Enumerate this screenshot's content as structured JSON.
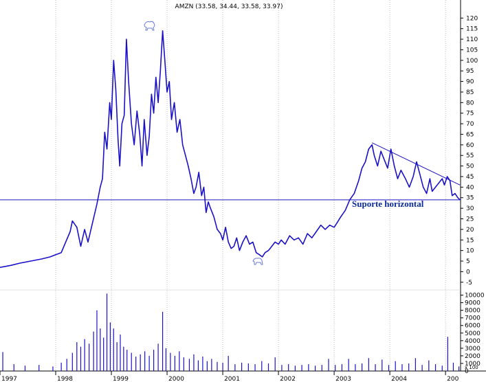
{
  "chart_data": {
    "type": "line",
    "title": "AMZN (33.58, 34.44, 33.58, 33.97)",
    "xlabel": "",
    "ylabel": "",
    "x_ticks": [
      "1997",
      "1998",
      "1999",
      "2000",
      "2001",
      "2002",
      "2003",
      "2004",
      "200"
    ],
    "price_axis": {
      "ylim": [
        -8,
        124
      ],
      "ticks": [
        -5,
        0,
        5,
        10,
        15,
        20,
        25,
        30,
        35,
        40,
        45,
        50,
        55,
        60,
        65,
        70,
        75,
        80,
        85,
        90,
        95,
        100,
        105,
        110,
        115,
        120
      ]
    },
    "volume_axis": {
      "ylim": [
        0,
        10500
      ],
      "ticks": [
        0,
        1000,
        2000,
        3000,
        4000,
        5000,
        6000,
        7000,
        8000,
        9000,
        10000
      ],
      "scale_label": "x 100"
    },
    "series": [
      {
        "values_xy": [
          [
            1997.0,
            2
          ],
          [
            1997.2,
            3
          ],
          [
            1997.35,
            4
          ],
          [
            1997.55,
            5
          ],
          [
            1997.75,
            6
          ],
          [
            1997.9,
            7
          ],
          [
            1998.0,
            8
          ],
          [
            1998.1,
            9
          ],
          [
            1998.18,
            14
          ],
          [
            1998.26,
            19
          ],
          [
            1998.3,
            24
          ],
          [
            1998.38,
            21
          ],
          [
            1998.45,
            12
          ],
          [
            1998.52,
            20
          ],
          [
            1998.58,
            14
          ],
          [
            1998.66,
            23
          ],
          [
            1998.74,
            32
          ],
          [
            1998.8,
            40
          ],
          [
            1998.84,
            44
          ],
          [
            1998.88,
            66
          ],
          [
            1998.92,
            58
          ],
          [
            1998.97,
            80
          ],
          [
            1999.0,
            72
          ],
          [
            1999.04,
            100
          ],
          [
            1999.08,
            86
          ],
          [
            1999.12,
            62
          ],
          [
            1999.15,
            50
          ],
          [
            1999.19,
            70
          ],
          [
            1999.23,
            74
          ],
          [
            1999.27,
            110
          ],
          [
            1999.31,
            90
          ],
          [
            1999.36,
            70
          ],
          [
            1999.41,
            60
          ],
          [
            1999.46,
            76
          ],
          [
            1999.51,
            65
          ],
          [
            1999.55,
            50
          ],
          [
            1999.59,
            72
          ],
          [
            1999.64,
            55
          ],
          [
            1999.68,
            64
          ],
          [
            1999.72,
            84
          ],
          [
            1999.76,
            75
          ],
          [
            1999.8,
            92
          ],
          [
            1999.84,
            80
          ],
          [
            1999.88,
            95
          ],
          [
            1999.92,
            114
          ],
          [
            1999.96,
            100
          ],
          [
            2000.0,
            85
          ],
          [
            2000.04,
            90
          ],
          [
            2000.08,
            72
          ],
          [
            2000.13,
            80
          ],
          [
            2000.18,
            66
          ],
          [
            2000.23,
            72
          ],
          [
            2000.28,
            60
          ],
          [
            2000.33,
            55
          ],
          [
            2000.38,
            50
          ],
          [
            2000.43,
            44
          ],
          [
            2000.48,
            37
          ],
          [
            2000.52,
            40
          ],
          [
            2000.57,
            47
          ],
          [
            2000.62,
            36
          ],
          [
            2000.66,
            40
          ],
          [
            2000.7,
            28
          ],
          [
            2000.74,
            33
          ],
          [
            2000.78,
            30
          ],
          [
            2000.84,
            26
          ],
          [
            2000.9,
            20
          ],
          [
            2000.96,
            18
          ],
          [
            2001.0,
            15
          ],
          [
            2001.05,
            21
          ],
          [
            2001.1,
            14
          ],
          [
            2001.15,
            11
          ],
          [
            2001.2,
            12
          ],
          [
            2001.25,
            16
          ],
          [
            2001.3,
            10
          ],
          [
            2001.36,
            14
          ],
          [
            2001.42,
            17
          ],
          [
            2001.48,
            13
          ],
          [
            2001.54,
            14
          ],
          [
            2001.6,
            9
          ],
          [
            2001.66,
            8
          ],
          [
            2001.71,
            7
          ],
          [
            2001.76,
            9
          ],
          [
            2001.82,
            10
          ],
          [
            2001.88,
            12
          ],
          [
            2001.94,
            14
          ],
          [
            2002.0,
            13
          ],
          [
            2002.05,
            15
          ],
          [
            2002.12,
            13
          ],
          [
            2002.2,
            17
          ],
          [
            2002.28,
            15
          ],
          [
            2002.36,
            16
          ],
          [
            2002.44,
            13
          ],
          [
            2002.52,
            18
          ],
          [
            2002.6,
            16
          ],
          [
            2002.68,
            19
          ],
          [
            2002.76,
            22
          ],
          [
            2002.84,
            20
          ],
          [
            2002.92,
            22
          ],
          [
            2003.0,
            21
          ],
          [
            2003.05,
            23
          ],
          [
            2003.12,
            26
          ],
          [
            2003.2,
            29
          ],
          [
            2003.28,
            34
          ],
          [
            2003.36,
            37
          ],
          [
            2003.44,
            43
          ],
          [
            2003.5,
            49
          ],
          [
            2003.56,
            52
          ],
          [
            2003.62,
            58
          ],
          [
            2003.68,
            60
          ],
          [
            2003.72,
            55
          ],
          [
            2003.78,
            50
          ],
          [
            2003.84,
            57
          ],
          [
            2003.9,
            53
          ],
          [
            2003.96,
            49
          ],
          [
            2004.02,
            58
          ],
          [
            2004.08,
            50
          ],
          [
            2004.14,
            44
          ],
          [
            2004.2,
            48
          ],
          [
            2004.28,
            44
          ],
          [
            2004.35,
            40
          ],
          [
            2004.42,
            45
          ],
          [
            2004.48,
            52
          ],
          [
            2004.54,
            46
          ],
          [
            2004.6,
            40
          ],
          [
            2004.66,
            37
          ],
          [
            2004.72,
            44
          ],
          [
            2004.76,
            38
          ],
          [
            2004.82,
            40
          ],
          [
            2004.88,
            42
          ],
          [
            2004.94,
            44
          ],
          [
            2004.98,
            41
          ],
          [
            2005.03,
            45
          ],
          [
            2005.08,
            43
          ],
          [
            2005.12,
            36
          ],
          [
            2005.17,
            37
          ],
          [
            2005.22,
            35
          ],
          [
            2005.26,
            34
          ]
        ]
      }
    ],
    "volume_bars": [
      [
        1997.05,
        2500
      ],
      [
        1997.25,
        900
      ],
      [
        1997.45,
        700
      ],
      [
        1997.7,
        800
      ],
      [
        1997.95,
        600
      ],
      [
        1998.1,
        1100
      ],
      [
        1998.2,
        1600
      ],
      [
        1998.3,
        2400
      ],
      [
        1998.38,
        3800
      ],
      [
        1998.45,
        3200
      ],
      [
        1998.52,
        4200
      ],
      [
        1998.6,
        3600
      ],
      [
        1998.68,
        5200
      ],
      [
        1998.74,
        8000
      ],
      [
        1998.8,
        5600
      ],
      [
        1998.86,
        4400
      ],
      [
        1998.92,
        10200
      ],
      [
        1998.98,
        6400
      ],
      [
        1999.04,
        5600
      ],
      [
        1999.1,
        3800
      ],
      [
        1999.16,
        4800
      ],
      [
        1999.22,
        3200
      ],
      [
        1999.28,
        2800
      ],
      [
        1999.36,
        2400
      ],
      [
        1999.44,
        1900
      ],
      [
        1999.52,
        2200
      ],
      [
        1999.6,
        2600
      ],
      [
        1999.68,
        2000
      ],
      [
        1999.76,
        2800
      ],
      [
        1999.84,
        3600
      ],
      [
        1999.92,
        7800
      ],
      [
        1999.98,
        3000
      ],
      [
        2000.06,
        2400
      ],
      [
        2000.14,
        2000
      ],
      [
        2000.22,
        2600
      ],
      [
        2000.3,
        1800
      ],
      [
        2000.4,
        1600
      ],
      [
        2000.48,
        2200
      ],
      [
        2000.56,
        1400
      ],
      [
        2000.64,
        1900
      ],
      [
        2000.72,
        1300
      ],
      [
        2000.8,
        1600
      ],
      [
        2000.9,
        1200
      ],
      [
        2001.0,
        1100
      ],
      [
        2001.1,
        2000
      ],
      [
        2001.22,
        900
      ],
      [
        2001.34,
        1100
      ],
      [
        2001.46,
        1000
      ],
      [
        2001.58,
        900
      ],
      [
        2001.7,
        1300
      ],
      [
        2001.82,
        1000
      ],
      [
        2001.94,
        1800
      ],
      [
        2002.06,
        800
      ],
      [
        2002.18,
        900
      ],
      [
        2002.3,
        700
      ],
      [
        2002.42,
        800
      ],
      [
        2002.54,
        900
      ],
      [
        2002.66,
        700
      ],
      [
        2002.78,
        800
      ],
      [
        2002.9,
        1600
      ],
      [
        2003.02,
        800
      ],
      [
        2003.14,
        900
      ],
      [
        2003.26,
        1600
      ],
      [
        2003.38,
        900
      ],
      [
        2003.5,
        1000
      ],
      [
        2003.62,
        1700
      ],
      [
        2003.74,
        900
      ],
      [
        2003.86,
        1500
      ],
      [
        2003.98,
        800
      ],
      [
        2004.1,
        1300
      ],
      [
        2004.22,
        900
      ],
      [
        2004.34,
        1000
      ],
      [
        2004.46,
        1700
      ],
      [
        2004.58,
        800
      ],
      [
        2004.7,
        1400
      ],
      [
        2004.82,
        900
      ],
      [
        2004.94,
        700
      ],
      [
        2005.04,
        4500
      ],
      [
        2005.14,
        1100
      ],
      [
        2005.24,
        600
      ]
    ],
    "reference_lines": [
      {
        "kind": "horizontal",
        "y": 34
      },
      {
        "kind": "trendline",
        "from": [
          2003.68,
          61
        ],
        "to": [
          2005.26,
          41
        ]
      }
    ],
    "annotations": [
      "Suporte horizontal"
    ],
    "grid": "vertical dotted lines at year boundaries",
    "colors": {
      "line": "#1a10c8",
      "volume": "#1a10c8",
      "reference": "#1a10c8",
      "grid": "#9aa0a6",
      "annotation": "#0a2a9c"
    }
  }
}
